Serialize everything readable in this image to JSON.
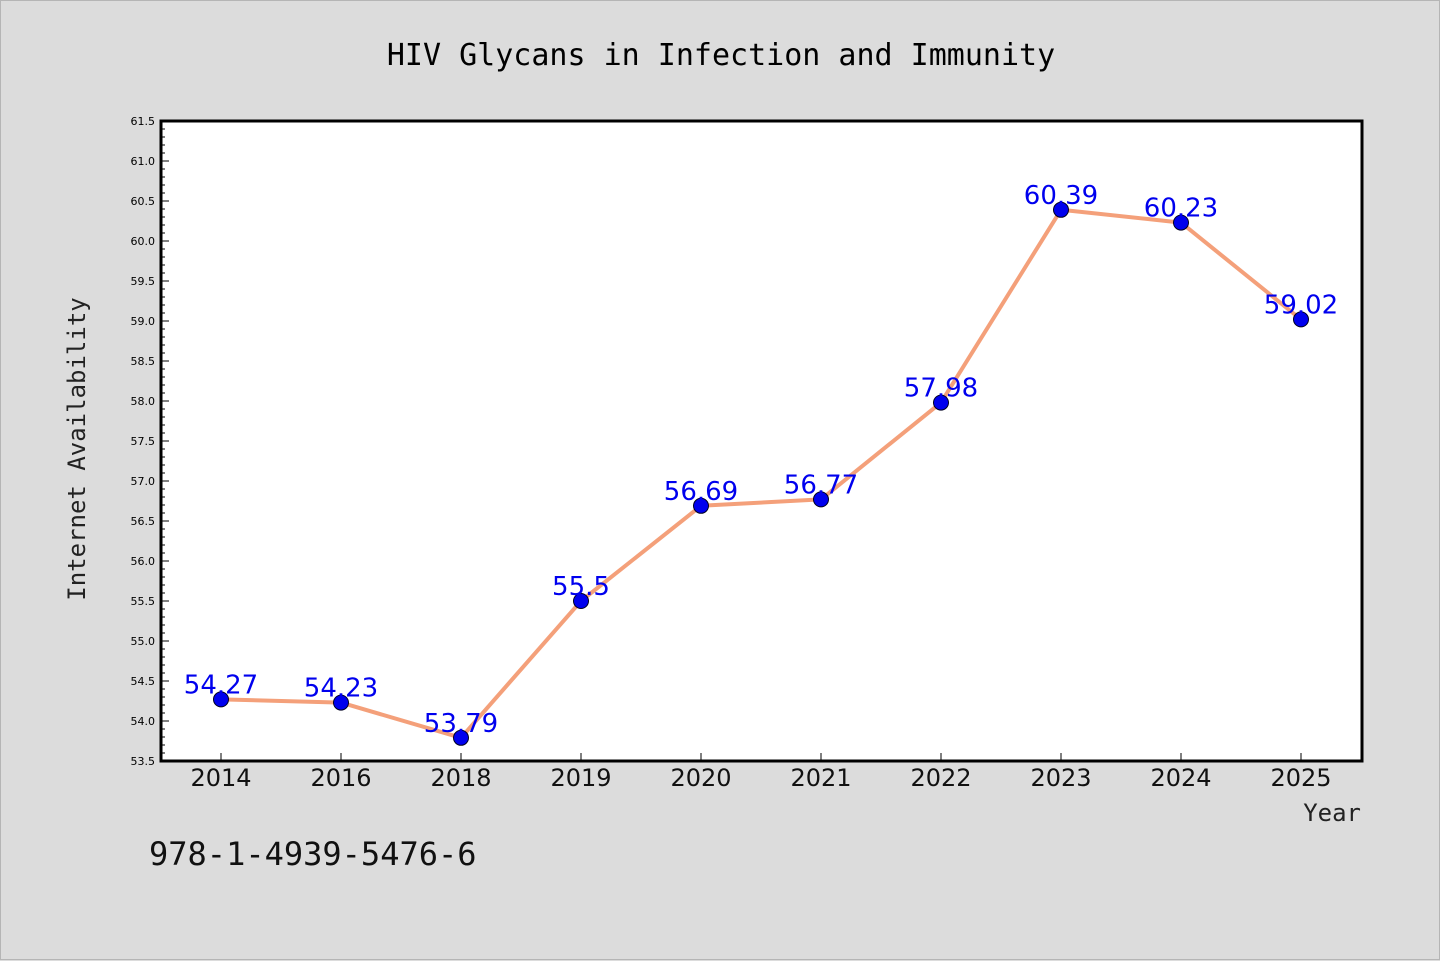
{
  "chart_data": {
    "type": "line",
    "title": "HIV Glycans in Infection and Immunity",
    "xlabel": "Year",
    "ylabel": "Internet Availability",
    "categories": [
      "2014",
      "2016",
      "2018",
      "2019",
      "2020",
      "2021",
      "2022",
      "2023",
      "2024",
      "2025"
    ],
    "series": [
      {
        "values": [
          54.27,
          54.23,
          53.79,
          55.5,
          56.69,
          56.77,
          57.98,
          60.39,
          60.23,
          59.02
        ],
        "data_labels": [
          "54.27",
          "54.23",
          "53.79",
          "55.5",
          "56.69",
          "56.77",
          "57.98",
          "60.39",
          "60.23",
          "59.02"
        ],
        "line_color": "#f4a07a",
        "marker_color": "#0000ee"
      }
    ],
    "ylim": [
      53.5,
      61.5
    ],
    "yticks": [
      "53.5",
      "54.0",
      "54.5",
      "55.0",
      "55.5",
      "56.0",
      "56.5",
      "57.0",
      "57.5",
      "58.0",
      "58.5",
      "59.0",
      "59.5",
      "60.0",
      "60.5",
      "61.0",
      "61.5"
    ],
    "grid": false,
    "legend": "none"
  },
  "footer": {
    "isbn": "978-1-4939-5476-6"
  }
}
